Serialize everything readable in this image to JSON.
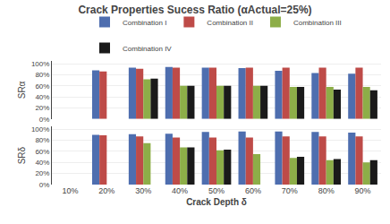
{
  "chart_data": [
    {
      "type": "bar",
      "title": "Crack Properties Sucess Ratio (αActual=25%)",
      "ylabel": "SRα",
      "categories": [
        "10%",
        "20%",
        "30%",
        "40%",
        "50%",
        "60%",
        "70%",
        "80%",
        "90%"
      ],
      "series": [
        {
          "name": "Combination I",
          "color": "#4E6EAF",
          "values": [
            0.0,
            0.88,
            0.93,
            0.94,
            0.93,
            0.92,
            0.87,
            0.83,
            0.82
          ]
        },
        {
          "name": "Combination II",
          "color": "#BE4B48",
          "values": [
            0.0,
            0.86,
            0.91,
            0.93,
            0.93,
            0.93,
            0.93,
            0.93,
            0.93
          ]
        },
        {
          "name": "Combination III",
          "color": "#8DAE48",
          "values": [
            0.0,
            0.0,
            0.72,
            0.6,
            0.6,
            0.6,
            0.58,
            0.58,
            0.58
          ]
        },
        {
          "name": "Combination IV",
          "color": "#1A1A1A",
          "values": [
            0.0,
            0.0,
            0.73,
            0.6,
            0.6,
            0.6,
            0.58,
            0.53,
            0.52
          ]
        }
      ],
      "ylim": [
        0,
        1.05
      ],
      "yticks": [
        {
          "value": 0.0,
          "label": "0%"
        },
        {
          "value": 0.2,
          "label": "20%"
        },
        {
          "value": 0.4,
          "label": "40%"
        },
        {
          "value": 0.6,
          "label": "60%"
        },
        {
          "value": 0.8,
          "label": "80%"
        },
        {
          "value": 1.0,
          "label": "100%"
        }
      ],
      "grid": true,
      "legend": "top",
      "tick_labels": "y"
    },
    {
      "type": "bar",
      "xlabel": "Crack Depth δ",
      "ylabel": "SRδ",
      "categories": [
        "10%",
        "20%",
        "30%",
        "40%",
        "50%",
        "60%",
        "70%",
        "80%",
        "90%"
      ],
      "series": [
        {
          "name": "Combination I",
          "color": "#4E6EAF",
          "values": [
            0.0,
            0.9,
            0.91,
            0.92,
            0.95,
            0.96,
            0.96,
            0.95,
            0.94
          ]
        },
        {
          "name": "Combination II",
          "color": "#BE4B48",
          "values": [
            0.0,
            0.89,
            0.87,
            0.85,
            0.85,
            0.85,
            0.87,
            0.87,
            0.87
          ]
        },
        {
          "name": "Combination III",
          "color": "#8DAE48",
          "values": [
            0.0,
            0.0,
            0.75,
            0.67,
            0.62,
            0.55,
            0.48,
            0.44,
            0.4
          ]
        },
        {
          "name": "Combination IV",
          "color": "#1A1A1A",
          "values": [
            0.0,
            0.0,
            0.0,
            0.67,
            0.63,
            0.0,
            0.5,
            0.46,
            0.44
          ]
        }
      ],
      "ylim": [
        0,
        1.05
      ],
      "yticks": [
        {
          "value": 0.0,
          "label": "0%"
        },
        {
          "value": 0.2,
          "label": "20%"
        },
        {
          "value": 0.4,
          "label": "40%"
        },
        {
          "value": 0.6,
          "label": "60%"
        },
        {
          "value": 0.8,
          "label": "80%"
        },
        {
          "value": 1.0,
          "label": "100%"
        }
      ],
      "grid": true
    }
  ]
}
